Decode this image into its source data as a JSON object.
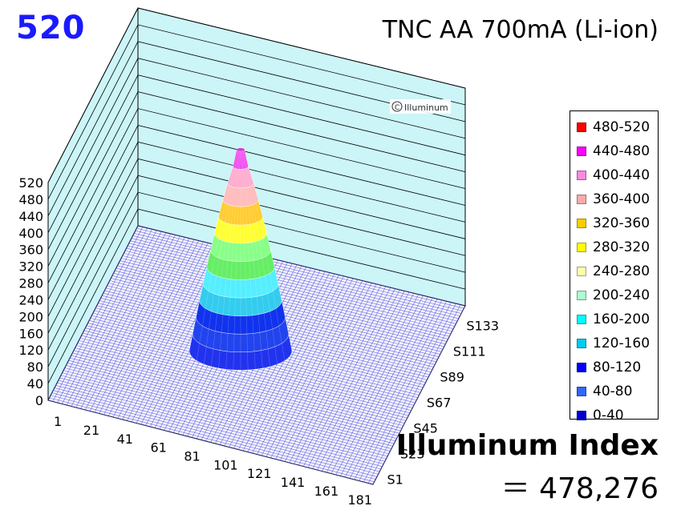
{
  "peak_value": "520",
  "title": "TNC AA 700mA (Li-ion)",
  "watermark": "Illuminum",
  "index": {
    "label": "Illuminum Index",
    "value": "＝ 478,276"
  },
  "chart_data": {
    "type": "surface",
    "zlim": [
      0,
      520
    ],
    "z_ticks": [
      "0",
      "40",
      "80",
      "120",
      "160",
      "200",
      "240",
      "280",
      "320",
      "360",
      "400",
      "440",
      "480",
      "520"
    ],
    "x_ticks": [
      "1",
      "21",
      "41",
      "61",
      "81",
      "101",
      "121",
      "141",
      "161",
      "181"
    ],
    "y_ticks": [
      "S1",
      "S23",
      "S45",
      "S67",
      "S89",
      "S111",
      "S133"
    ],
    "peak": 520,
    "legend": [
      {
        "label": "480-520",
        "color": "#ff0000"
      },
      {
        "label": "440-480",
        "color": "#ff00ff"
      },
      {
        "label": "400-440",
        "color": "#ff88dd"
      },
      {
        "label": "360-400",
        "color": "#ffaaaa"
      },
      {
        "label": "320-360",
        "color": "#ffcc00"
      },
      {
        "label": "280-320",
        "color": "#ffff00"
      },
      {
        "label": "240-280",
        "color": "#ffffaa"
      },
      {
        "label": "200-240",
        "color": "#aaffcc"
      },
      {
        "label": "160-200",
        "color": "#00ffff"
      },
      {
        "label": "120-160",
        "color": "#00ccee"
      },
      {
        "label": "80-120",
        "color": "#0000ff"
      },
      {
        "label": "40-80",
        "color": "#3366ff"
      },
      {
        "label": "0-40",
        "color": "#0000cc"
      }
    ],
    "beam_bands": [
      {
        "range": "0-40",
        "color": "#2233ee"
      },
      {
        "range": "40-80",
        "color": "#2244ee"
      },
      {
        "range": "80-120",
        "color": "#1133ee"
      },
      {
        "range": "120-160",
        "color": "#33ccee"
      },
      {
        "range": "160-200",
        "color": "#55eeff"
      },
      {
        "range": "200-240",
        "color": "#66ee66"
      },
      {
        "range": "240-280",
        "color": "#88ff88"
      },
      {
        "range": "280-320",
        "color": "#ffff33"
      },
      {
        "range": "320-360",
        "color": "#ffcc33"
      },
      {
        "range": "360-400",
        "color": "#ffbbbb"
      },
      {
        "range": "400-440",
        "color": "#ffaacc"
      },
      {
        "range": "440-480",
        "color": "#ee44ee"
      }
    ]
  }
}
